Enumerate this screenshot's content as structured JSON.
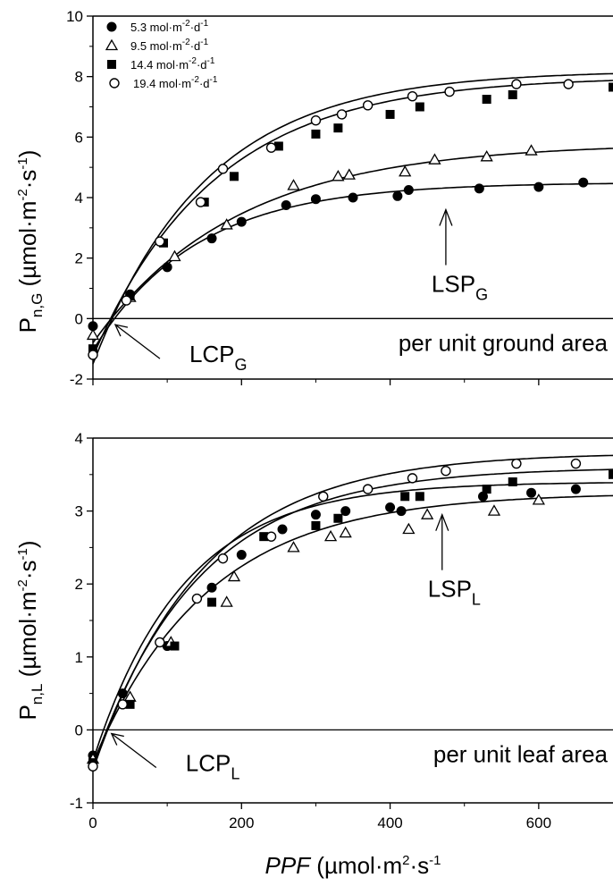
{
  "chart_data": [
    {
      "type": "scatter",
      "panel": "top",
      "ylabel": {
        "main": "P",
        "sub": "n,G",
        "unit_pre": " (µmol·m",
        "unit_exp1": "-2",
        "unit_mid": "·s",
        "unit_exp2": "-1",
        "unit_post": ")"
      },
      "xlim": [
        0,
        700
      ],
      "ylim": [
        -2,
        10
      ],
      "yticks": [
        -2,
        0,
        2,
        4,
        6,
        8,
        10
      ],
      "xticks": [
        0,
        200,
        400,
        600
      ],
      "annotations": {
        "lcp": {
          "main": "LCP",
          "sub": "G",
          "at": [
            30,
            -0.2
          ]
        },
        "lsp": {
          "main": "LSP",
          "sub": "G",
          "at": [
            475,
            3.6
          ]
        },
        "area": "per unit ground area"
      },
      "legend": {
        "position": "top-left",
        "entries": [
          {
            "value": "5.3",
            "unit": " mol·m",
            "e1": "-2",
            "mid": "·d",
            "e2": "-1",
            "marker": "filled-circle"
          },
          {
            "value": "9.5",
            "unit": " mol·m",
            "e1": "-2",
            "mid": "·d",
            "e2": "-1",
            "marker": "open-triangle"
          },
          {
            "value": "14.4",
            "unit": " mol·m",
            "e1": "-2",
            "mid": "·d",
            "e2": "-1",
            "marker": "filled-square"
          },
          {
            "value": "19.4",
            "unit": " mol·m",
            "e1": "-2",
            "mid": "·d",
            "e2": "-1",
            "marker": "open-circle"
          }
        ]
      },
      "series": [
        {
          "marker": "filled-circle",
          "pmax": 4.5,
          "rd": 1.05,
          "k": 0.0072,
          "x": [
            0,
            50,
            100,
            160,
            200,
            260,
            300,
            350,
            410,
            425,
            520,
            600,
            660
          ],
          "y": [
            -0.25,
            0.8,
            1.7,
            2.65,
            3.2,
            3.75,
            3.95,
            4.0,
            4.05,
            4.25,
            4.3,
            4.35,
            4.5
          ]
        },
        {
          "marker": "open-triangle",
          "pmax": 5.8,
          "rd": 0.8,
          "k": 0.0052,
          "x": [
            0,
            50,
            110,
            180,
            270,
            330,
            345,
            420,
            460,
            530,
            590
          ],
          "y": [
            -0.55,
            0.7,
            2.05,
            3.1,
            4.4,
            4.7,
            4.75,
            4.85,
            5.25,
            5.35,
            5.55
          ]
        },
        {
          "marker": "filled-square",
          "pmax": 8.0,
          "rd": 1.25,
          "k": 0.0061,
          "x": [
            0,
            50,
            95,
            150,
            190,
            250,
            300,
            330,
            400,
            440,
            530,
            565,
            700
          ],
          "y": [
            -1.0,
            0.75,
            2.5,
            3.85,
            4.7,
            5.7,
            6.1,
            6.3,
            6.75,
            7.0,
            7.25,
            7.4,
            7.65
          ]
        },
        {
          "marker": "open-circle",
          "pmax": 8.2,
          "rd": 1.5,
          "k": 0.0065,
          "x": [
            0,
            45,
            90,
            145,
            175,
            240,
            300,
            335,
            370,
            430,
            480,
            570,
            640
          ],
          "y": [
            -1.2,
            0.6,
            2.55,
            3.85,
            4.95,
            5.65,
            6.55,
            6.75,
            7.05,
            7.35,
            7.5,
            7.75,
            7.75
          ]
        }
      ]
    },
    {
      "type": "scatter",
      "panel": "bottom",
      "ylabel": {
        "main": "P",
        "sub": "n,L",
        "unit_pre": " (µmol·m",
        "unit_exp1": "-2",
        "unit_mid": "·s",
        "unit_exp2": "-1",
        "unit_post": ")"
      },
      "xlabel": {
        "main": "PPF",
        "unit_pre": " (µmol·m",
        "unit_exp": "2",
        "unit_mid": "·s",
        "unit_exp2": "-1"
      },
      "xlim": [
        0,
        700
      ],
      "ylim": [
        -1,
        4
      ],
      "yticks": [
        -1,
        0,
        1,
        2,
        3,
        4
      ],
      "xticks": [
        0,
        200,
        400,
        600
      ],
      "xticklabels": [
        "0",
        "200",
        "400",
        "600"
      ],
      "annotations": {
        "lcp": {
          "main": "LCP",
          "sub": "L",
          "at": [
            25,
            -0.05
          ]
        },
        "lsp": {
          "main": "LSP",
          "sub": "L",
          "at": [
            470,
            2.95
          ]
        },
        "area": "per unit leaf area"
      },
      "series": [
        {
          "marker": "filled-circle",
          "pmax": 3.4,
          "rd": 0.42,
          "k": 0.0082,
          "x": [
            0,
            40,
            100,
            160,
            200,
            255,
            300,
            340,
            400,
            415,
            525,
            590,
            650
          ],
          "y": [
            -0.35,
            0.5,
            1.15,
            1.95,
            2.4,
            2.75,
            2.95,
            3.0,
            3.05,
            3.0,
            3.2,
            3.25,
            3.3
          ]
        },
        {
          "marker": "open-triangle",
          "pmax": 3.25,
          "rd": 0.45,
          "k": 0.0065,
          "x": [
            0,
            50,
            105,
            180,
            190,
            270,
            320,
            340,
            425,
            450,
            540,
            600
          ],
          "y": [
            -0.4,
            0.45,
            1.2,
            1.75,
            2.1,
            2.5,
            2.65,
            2.7,
            2.75,
            2.95,
            3.0,
            3.15
          ]
        },
        {
          "marker": "filled-square",
          "pmax": 3.6,
          "rd": 0.5,
          "k": 0.007,
          "x": [
            0,
            50,
            110,
            160,
            230,
            300,
            330,
            420,
            440,
            530,
            565,
            700
          ],
          "y": [
            -0.45,
            0.35,
            1.15,
            1.75,
            2.65,
            2.8,
            2.9,
            3.2,
            3.2,
            3.3,
            3.4,
            3.5
          ]
        },
        {
          "marker": "open-circle",
          "pmax": 3.8,
          "rd": 0.55,
          "k": 0.0068,
          "x": [
            0,
            40,
            90,
            140,
            175,
            240,
            310,
            370,
            430,
            475,
            570,
            650
          ],
          "y": [
            -0.5,
            0.35,
            1.2,
            1.8,
            2.35,
            2.65,
            3.2,
            3.3,
            3.45,
            3.55,
            3.65,
            3.65
          ]
        }
      ]
    }
  ]
}
